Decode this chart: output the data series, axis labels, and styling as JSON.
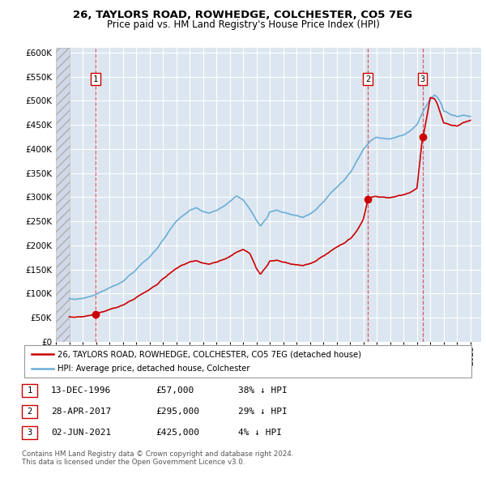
{
  "title": "26, TAYLORS ROAD, ROWHEDGE, COLCHESTER, CO5 7EG",
  "subtitle": "Price paid vs. HM Land Registry's House Price Index (HPI)",
  "sale_year_nums": [
    1996.958,
    2017.328,
    2021.417
  ],
  "sale_prices": [
    57000,
    295000,
    425000
  ],
  "sale_labels": [
    "1",
    "2",
    "3"
  ],
  "sale_info": [
    [
      "1",
      "13-DEC-1996",
      "£57,000",
      "38% ↓ HPI"
    ],
    [
      "2",
      "28-APR-2017",
      "£295,000",
      "29% ↓ HPI"
    ],
    [
      "3",
      "02-JUN-2021",
      "£425,000",
      "4% ↓ HPI"
    ]
  ],
  "legend_entries": [
    "26, TAYLORS ROAD, ROWHEDGE, COLCHESTER, CO5 7EG (detached house)",
    "HPI: Average price, detached house, Colchester"
  ],
  "red_color": "#cc0000",
  "blue_color": "#6baed6",
  "background_color": "#dce6f1",
  "grid_color": "#ffffff",
  "hpi_keypoints": [
    [
      1995.0,
      90000
    ],
    [
      1995.5,
      88000
    ],
    [
      1996.0,
      90000
    ],
    [
      1996.5,
      93000
    ],
    [
      1997.0,
      98000
    ],
    [
      1997.5,
      105000
    ],
    [
      1998.0,
      112000
    ],
    [
      1998.5,
      118000
    ],
    [
      1999.0,
      125000
    ],
    [
      1999.5,
      138000
    ],
    [
      2000.0,
      150000
    ],
    [
      2000.5,
      165000
    ],
    [
      2001.0,
      175000
    ],
    [
      2001.5,
      192000
    ],
    [
      2002.0,
      210000
    ],
    [
      2002.5,
      232000
    ],
    [
      2003.0,
      250000
    ],
    [
      2003.5,
      262000
    ],
    [
      2004.0,
      272000
    ],
    [
      2004.5,
      278000
    ],
    [
      2005.0,
      270000
    ],
    [
      2005.5,
      268000
    ],
    [
      2006.0,
      272000
    ],
    [
      2006.5,
      280000
    ],
    [
      2007.0,
      292000
    ],
    [
      2007.5,
      302000
    ],
    [
      2008.0,
      295000
    ],
    [
      2008.5,
      275000
    ],
    [
      2009.0,
      252000
    ],
    [
      2009.3,
      240000
    ],
    [
      2009.5,
      248000
    ],
    [
      2009.8,
      258000
    ],
    [
      2010.0,
      270000
    ],
    [
      2010.5,
      272000
    ],
    [
      2011.0,
      268000
    ],
    [
      2011.5,
      265000
    ],
    [
      2012.0,
      262000
    ],
    [
      2012.5,
      258000
    ],
    [
      2013.0,
      265000
    ],
    [
      2013.5,
      275000
    ],
    [
      2014.0,
      290000
    ],
    [
      2014.5,
      308000
    ],
    [
      2015.0,
      320000
    ],
    [
      2015.5,
      335000
    ],
    [
      2016.0,
      350000
    ],
    [
      2016.5,
      375000
    ],
    [
      2017.0,
      400000
    ],
    [
      2017.5,
      415000
    ],
    [
      2018.0,
      425000
    ],
    [
      2018.5,
      422000
    ],
    [
      2019.0,
      420000
    ],
    [
      2019.5,
      425000
    ],
    [
      2020.0,
      430000
    ],
    [
      2020.5,
      438000
    ],
    [
      2021.0,
      450000
    ],
    [
      2021.5,
      480000
    ],
    [
      2022.0,
      505000
    ],
    [
      2022.3,
      512000
    ],
    [
      2022.5,
      508000
    ],
    [
      2022.8,
      495000
    ],
    [
      2023.0,
      480000
    ],
    [
      2023.5,
      472000
    ],
    [
      2024.0,
      468000
    ],
    [
      2024.5,
      470000
    ],
    [
      2025.0,
      468000
    ]
  ],
  "red_keypoints": [
    [
      1995.0,
      52000
    ],
    [
      1995.5,
      51000
    ],
    [
      1996.0,
      52000
    ],
    [
      1996.5,
      54000
    ],
    [
      1996.958,
      57000
    ],
    [
      1997.0,
      57500
    ],
    [
      1997.5,
      62000
    ],
    [
      1998.0,
      67000
    ],
    [
      1998.5,
      71000
    ],
    [
      1999.0,
      76000
    ],
    [
      1999.5,
      84000
    ],
    [
      2000.0,
      92000
    ],
    [
      2000.5,
      101000
    ],
    [
      2001.0,
      108000
    ],
    [
      2001.5,
      118000
    ],
    [
      2002.0,
      130000
    ],
    [
      2002.5,
      142000
    ],
    [
      2003.0,
      152000
    ],
    [
      2003.5,
      160000
    ],
    [
      2004.0,
      165000
    ],
    [
      2004.5,
      168000
    ],
    [
      2005.0,
      163000
    ],
    [
      2005.5,
      162000
    ],
    [
      2006.0,
      165000
    ],
    [
      2006.5,
      170000
    ],
    [
      2007.0,
      178000
    ],
    [
      2007.5,
      185000
    ],
    [
      2008.0,
      192000
    ],
    [
      2008.5,
      183000
    ],
    [
      2009.0,
      152000
    ],
    [
      2009.3,
      140000
    ],
    [
      2009.5,
      148000
    ],
    [
      2009.8,
      158000
    ],
    [
      2010.0,
      168000
    ],
    [
      2010.5,
      168000
    ],
    [
      2011.0,
      165000
    ],
    [
      2011.5,
      162000
    ],
    [
      2012.0,
      160000
    ],
    [
      2012.5,
      158000
    ],
    [
      2013.0,
      162000
    ],
    [
      2013.5,
      168000
    ],
    [
      2014.0,
      178000
    ],
    [
      2014.5,
      188000
    ],
    [
      2015.0,
      196000
    ],
    [
      2015.5,
      205000
    ],
    [
      2016.0,
      213000
    ],
    [
      2016.5,
      230000
    ],
    [
      2017.0,
      255000
    ],
    [
      2017.328,
      295000
    ],
    [
      2017.5,
      298000
    ],
    [
      2018.0,
      302000
    ],
    [
      2018.5,
      300000
    ],
    [
      2019.0,
      298000
    ],
    [
      2019.5,
      302000
    ],
    [
      2020.0,
      306000
    ],
    [
      2020.5,
      310000
    ],
    [
      2021.0,
      318000
    ],
    [
      2021.417,
      425000
    ],
    [
      2021.5,
      430000
    ],
    [
      2022.0,
      508000
    ],
    [
      2022.3,
      505000
    ],
    [
      2022.5,
      495000
    ],
    [
      2022.8,
      470000
    ],
    [
      2023.0,
      455000
    ],
    [
      2023.5,
      450000
    ],
    [
      2024.0,
      448000
    ],
    [
      2024.5,
      455000
    ],
    [
      2025.0,
      460000
    ]
  ],
  "footer": "Contains HM Land Registry data © Crown copyright and database right 2024.\nThis data is licensed under the Open Government Licence v3.0."
}
